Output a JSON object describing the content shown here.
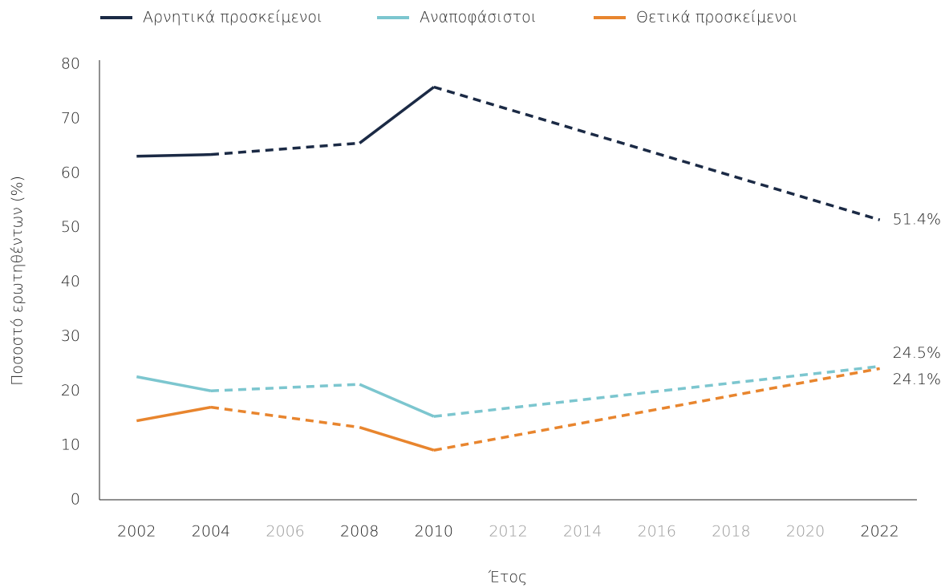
{
  "chart_data": {
    "type": "line",
    "y_label": "Ποσοστό ερωτηθέντων (%)",
    "x_label": "Έτος",
    "x": [
      2002,
      2004,
      2008,
      2010,
      2022
    ],
    "series": [
      {
        "name": "Αρνητικά προσκείμενοι",
        "color": "#1b2a45",
        "values": [
          63.1,
          63.4,
          65.5,
          75.8,
          51.4
        ],
        "value_labels": [
          null,
          null,
          null,
          null,
          "51.4%"
        ]
      },
      {
        "name": "Αναποφάσιστοι",
        "color": "#7cc6cf",
        "values": [
          22.6,
          20.0,
          21.2,
          15.3,
          24.5
        ],
        "value_labels": [
          null,
          null,
          null,
          null,
          "24.5%"
        ]
      },
      {
        "name": "Θετικά προσκείμενοι",
        "color": "#e8852e",
        "values": [
          14.5,
          17.0,
          13.3,
          9.1,
          24.1
        ],
        "value_labels": [
          null,
          null,
          null,
          null,
          "24.1%"
        ]
      }
    ],
    "xlim": [
      2001,
      2023
    ],
    "xticks": [
      2002,
      2004,
      2006,
      2008,
      2010,
      2012,
      2014,
      2016,
      2018,
      2020,
      2022
    ],
    "ylim": [
      0,
      80
    ],
    "yticks": [
      0,
      10,
      20,
      30,
      40,
      50,
      60,
      70,
      80
    ],
    "grid": false,
    "legend": "top"
  }
}
